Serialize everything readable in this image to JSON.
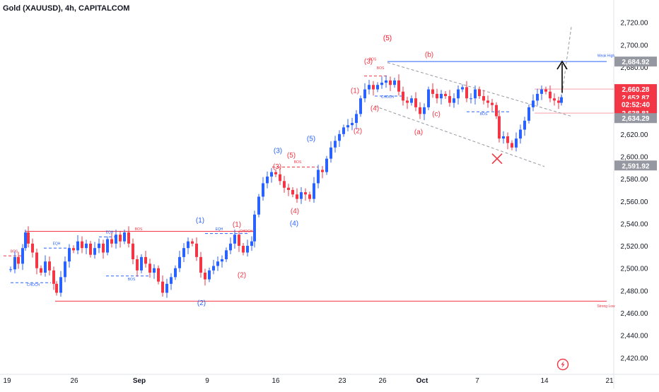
{
  "header": {
    "title": "Gold (XAUUSD), 4h, CAPITALCOM"
  },
  "chart_data": {
    "type": "candlestick",
    "symbol": "Gold (XAUUSD)",
    "timeframe": "4h",
    "broker": "CAPITALCOM",
    "ylim": [
      2405,
      2740
    ],
    "y_ticks": [
      2420,
      2440,
      2460,
      2480,
      2500,
      2520,
      2540,
      2560,
      2580,
      2600,
      2620,
      2640,
      2660,
      2680,
      2700,
      2720
    ],
    "y_tick_labels": [
      "2,420.00",
      "2,440.00",
      "2,460.00",
      "2,480.00",
      "2,500.00",
      "2,520.00",
      "2,540.00",
      "2,560.00",
      "2,580.00",
      "2,600.00",
      "2,620.00",
      "2,640.00",
      "2,660.00",
      "2,680.00",
      "2,700.00",
      "2,720.00"
    ],
    "x_ticks": [
      {
        "label": "19",
        "bold": false
      },
      {
        "label": "26",
        "bold": false
      },
      {
        "label": "Sep",
        "bold": true
      },
      {
        "label": "9",
        "bold": false
      },
      {
        "label": "16",
        "bold": false
      },
      {
        "label": "23",
        "bold": false
      },
      {
        "label": "26",
        "bold": false
      },
      {
        "label": "Oct",
        "bold": true
      },
      {
        "label": "7",
        "bold": false
      },
      {
        "label": "14",
        "bold": false
      },
      {
        "label": "21",
        "bold": false
      }
    ],
    "price_tags": [
      {
        "label": "2,684.92",
        "value": 2684.92,
        "kind": "gray"
      },
      {
        "label": "2,660.28",
        "value": 2660.28,
        "kind": "red"
      },
      {
        "label": "2,652.87",
        "value": 2652.87,
        "kind": "red"
      },
      {
        "label": "02:52:40",
        "value": 2646.9,
        "kind": "red"
      },
      {
        "label": "2,638.81",
        "value": 2638.81,
        "kind": "red"
      },
      {
        "label": "2,634.29",
        "value": 2634.29,
        "kind": "gray"
      },
      {
        "label": "2,591.92",
        "value": 2591.92,
        "kind": "gray"
      }
    ],
    "colors": {
      "up": "#2962ff",
      "down": "#f23645",
      "axis_text": "#131722",
      "grid": "#f0f3fa"
    },
    "key_prices": [
      {
        "pts": [
          [
            15,
            2499
          ],
          [
            21,
            2510
          ],
          [
            26,
            2504
          ],
          [
            32,
            2518
          ],
          [
            36,
            2532
          ],
          [
            40,
            2522
          ],
          [
            46,
            2514
          ],
          [
            52,
            2500
          ],
          [
            58,
            2496
          ],
          [
            64,
            2506
          ],
          [
            70,
            2498
          ],
          [
            76,
            2486
          ],
          [
            80,
            2478
          ],
          [
            86,
            2492
          ],
          [
            92,
            2506
          ],
          [
            98,
            2518
          ],
          [
            104,
            2516
          ],
          [
            110,
            2524
          ],
          [
            116,
            2518
          ],
          [
            122,
            2522
          ],
          [
            128,
            2512
          ],
          [
            134,
            2518
          ],
          [
            140,
            2522
          ],
          [
            146,
            2514
          ],
          [
            152,
            2526
          ],
          [
            158,
            2522
          ],
          [
            164,
            2530
          ],
          [
            170,
            2524
          ],
          [
            176,
            2532
          ],
          [
            182,
            2522
          ],
          [
            188,
            2508
          ],
          [
            194,
            2498
          ],
          [
            200,
            2510
          ],
          [
            206,
            2504
          ],
          [
            212,
            2496
          ],
          [
            218,
            2500
          ],
          [
            224,
            2488
          ],
          [
            230,
            2478
          ],
          [
            236,
            2486
          ],
          [
            242,
            2492
          ],
          [
            248,
            2500
          ],
          [
            254,
            2510
          ],
          [
            260,
            2518
          ],
          [
            266,
            2524
          ],
          [
            272,
            2522
          ],
          [
            278,
            2510
          ],
          [
            284,
            2496
          ],
          [
            290,
            2490
          ],
          [
            296,
            2498
          ],
          [
            302,
            2502
          ],
          [
            308,
            2506
          ],
          [
            314,
            2508
          ],
          [
            320,
            2516
          ],
          [
            326,
            2522
          ],
          [
            332,
            2530
          ],
          [
            338,
            2520
          ],
          [
            344,
            2514
          ],
          [
            350,
            2520
          ],
          [
            356,
            2524
          ],
          [
            360,
            2548
          ],
          [
            366,
            2564
          ],
          [
            372,
            2576
          ],
          [
            378,
            2582
          ],
          [
            384,
            2586
          ],
          [
            390,
            2584
          ],
          [
            396,
            2578
          ],
          [
            402,
            2572
          ],
          [
            408,
            2570
          ],
          [
            414,
            2566
          ],
          [
            420,
            2562
          ],
          [
            426,
            2568
          ],
          [
            432,
            2566
          ],
          [
            438,
            2562
          ],
          [
            444,
            2576
          ],
          [
            450,
            2588
          ],
          [
            456,
            2586
          ],
          [
            462,
            2598
          ],
          [
            468,
            2608
          ],
          [
            474,
            2614
          ],
          [
            480,
            2620
          ],
          [
            486,
            2626
          ],
          [
            492,
            2628
          ],
          [
            498,
            2630
          ],
          [
            504,
            2638
          ],
          [
            510,
            2652
          ],
          [
            516,
            2660
          ],
          [
            522,
            2664
          ],
          [
            528,
            2660
          ],
          [
            534,
            2664
          ],
          [
            540,
            2666
          ],
          [
            546,
            2668
          ],
          [
            552,
            2664
          ],
          [
            558,
            2668
          ],
          [
            564,
            2658
          ],
          [
            570,
            2650
          ],
          [
            576,
            2648
          ],
          [
            582,
            2652
          ],
          [
            588,
            2644
          ],
          [
            594,
            2638
          ],
          [
            600,
            2644
          ],
          [
            606,
            2660
          ],
          [
            612,
            2656
          ],
          [
            618,
            2652
          ],
          [
            624,
            2656
          ],
          [
            630,
            2654
          ],
          [
            636,
            2648
          ],
          [
            642,
            2652
          ],
          [
            648,
            2660
          ],
          [
            654,
            2662
          ],
          [
            660,
            2652
          ],
          [
            666,
            2652
          ],
          [
            672,
            2660
          ],
          [
            678,
            2654
          ],
          [
            684,
            2650
          ],
          [
            690,
            2648
          ],
          [
            696,
            2646
          ],
          [
            702,
            2636
          ],
          [
            706,
            2616
          ],
          [
            712,
            2618
          ],
          [
            718,
            2612
          ],
          [
            724,
            2608
          ],
          [
            730,
            2616
          ],
          [
            736,
            2624
          ],
          [
            742,
            2632
          ],
          [
            748,
            2644
          ],
          [
            754,
            2650
          ],
          [
            760,
            2656
          ],
          [
            766,
            2660
          ],
          [
            772,
            2658
          ],
          [
            778,
            2652
          ],
          [
            784,
            2650
          ],
          [
            790,
            2648
          ],
          [
            794,
            2653
          ]
        ]
      }
    ],
    "annotations": {
      "labels_red": [
        "BOS",
        "BOS",
        "BOS",
        "(1)",
        "CHOCH",
        "(2)",
        "(3)",
        "BOS",
        "(4)",
        "(5)",
        "(5)",
        "(3)",
        "BOS",
        "(1)",
        "(2)",
        "(4)",
        "(a)",
        "(b)",
        "(c)",
        "(5)"
      ],
      "labels_blue": [
        "EQH",
        "EQH",
        "EQH",
        "CHOCH",
        "BOS",
        "(1)",
        "(2)",
        "(3)",
        "(4)",
        "(5)",
        "CHOCH",
        "BOS"
      ],
      "level_labels": [
        "Weak High",
        "Strong Low"
      ]
    }
  }
}
